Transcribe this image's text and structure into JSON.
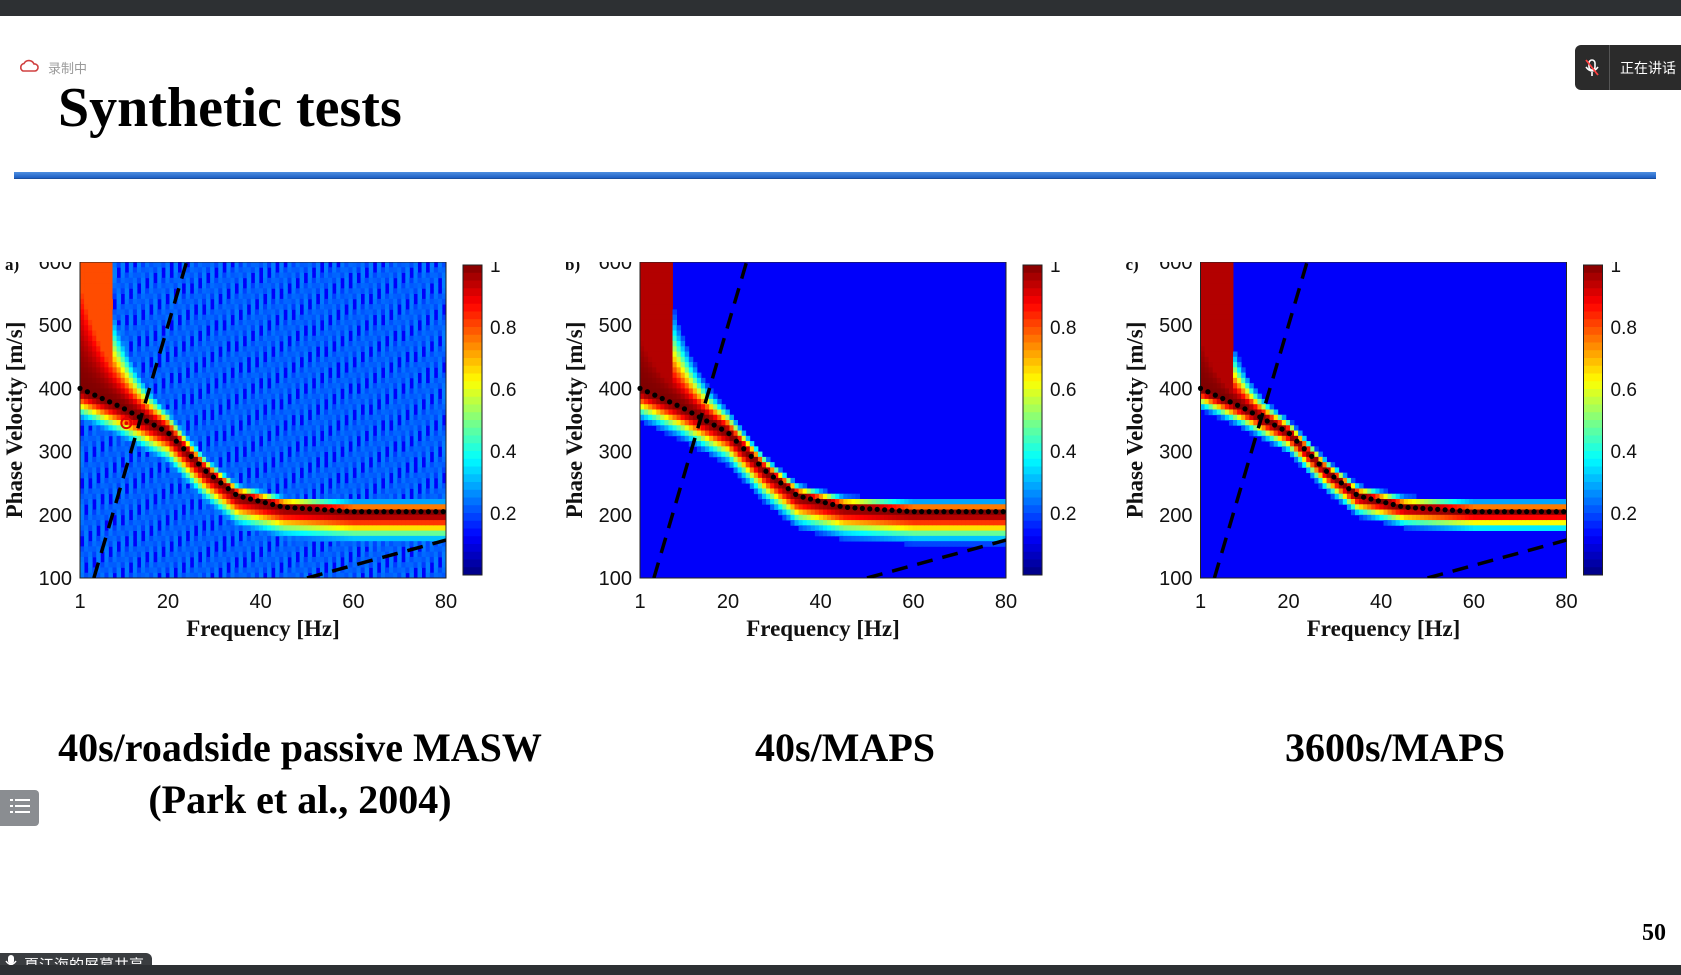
{
  "recording": {
    "label": "录制中",
    "icon": "cloud-icon"
  },
  "speaker": {
    "label": "正在讲话",
    "icon": "mic-muted-icon"
  },
  "slide": {
    "title": "Synthetic tests",
    "page_number": "50",
    "captions": [
      {
        "line1": "40s/roadside passive MASW",
        "line2": "(Park et al., 2004)"
      },
      {
        "line1": "40s/MAPS",
        "line2": ""
      },
      {
        "line1": "3600s/MAPS",
        "line2": ""
      }
    ]
  },
  "screen_share": {
    "label": "夏江海的屏幕共享",
    "icon": "mic-icon"
  },
  "toc_button": {
    "icon": "list-icon"
  },
  "chart_data": [
    {
      "type": "heatmap",
      "panel_label": "a)",
      "xlabel": "Frequency  [Hz]",
      "ylabel": "Phase Velocity  [m/s]",
      "xlim": [
        1,
        80
      ],
      "ylim": [
        100,
        600
      ],
      "xticks": [
        "1",
        "20",
        "40",
        "60",
        "80"
      ],
      "yticks": [
        "100",
        "200",
        "300",
        "400",
        "500",
        "600"
      ],
      "colorbar": {
        "ticks": [
          "0.2",
          "0.4",
          "0.6",
          "0.8",
          "1"
        ],
        "colormap": "jet"
      },
      "picked_dispersion": [
        [
          1,
          400
        ],
        [
          10,
          370
        ],
        [
          20,
          330
        ],
        [
          28,
          270
        ],
        [
          35,
          230
        ],
        [
          45,
          212
        ],
        [
          60,
          205
        ],
        [
          80,
          205
        ]
      ],
      "dashed_lines": [
        [
          [
            4,
            100
          ],
          [
            24,
            600
          ]
        ],
        [
          [
            50,
            100
          ],
          [
            80,
            160
          ]
        ]
      ],
      "marker": {
        "x": 11,
        "y": 345,
        "color": "#e00000"
      }
    },
    {
      "type": "heatmap",
      "panel_label": "b)",
      "xlabel": "Frequency  [Hz]",
      "ylabel": "Phase Velocity  [m/s]",
      "xlim": [
        1,
        80
      ],
      "ylim": [
        100,
        600
      ],
      "xticks": [
        "1",
        "20",
        "40",
        "60",
        "80"
      ],
      "yticks": [
        "100",
        "200",
        "300",
        "400",
        "500",
        "600"
      ],
      "colorbar": {
        "ticks": [
          "0.2",
          "0.4",
          "0.6",
          "0.8",
          "1"
        ],
        "colormap": "jet"
      },
      "picked_dispersion": [
        [
          1,
          400
        ],
        [
          10,
          370
        ],
        [
          20,
          330
        ],
        [
          28,
          270
        ],
        [
          35,
          230
        ],
        [
          45,
          212
        ],
        [
          60,
          205
        ],
        [
          80,
          205
        ]
      ],
      "dashed_lines": [
        [
          [
            4,
            100
          ],
          [
            24,
            600
          ]
        ],
        [
          [
            50,
            100
          ],
          [
            80,
            160
          ]
        ]
      ]
    },
    {
      "type": "heatmap",
      "panel_label": "c)",
      "xlabel": "Frequency  [Hz]",
      "ylabel": "Phase Velocity  [m/s]",
      "xlim": [
        1,
        80
      ],
      "ylim": [
        100,
        600
      ],
      "xticks": [
        "1",
        "20",
        "40",
        "60",
        "80"
      ],
      "yticks": [
        "100",
        "200",
        "300",
        "400",
        "500",
        "600"
      ],
      "colorbar": {
        "ticks": [
          "0.2",
          "0.4",
          "0.6",
          "0.8",
          "1"
        ],
        "colormap": "jet"
      },
      "picked_dispersion": [
        [
          1,
          400
        ],
        [
          10,
          370
        ],
        [
          20,
          330
        ],
        [
          28,
          270
        ],
        [
          35,
          230
        ],
        [
          45,
          212
        ],
        [
          60,
          205
        ],
        [
          80,
          205
        ]
      ],
      "dashed_lines": [
        [
          [
            4,
            100
          ],
          [
            24,
            600
          ]
        ],
        [
          [
            50,
            100
          ],
          [
            80,
            160
          ]
        ]
      ]
    }
  ]
}
